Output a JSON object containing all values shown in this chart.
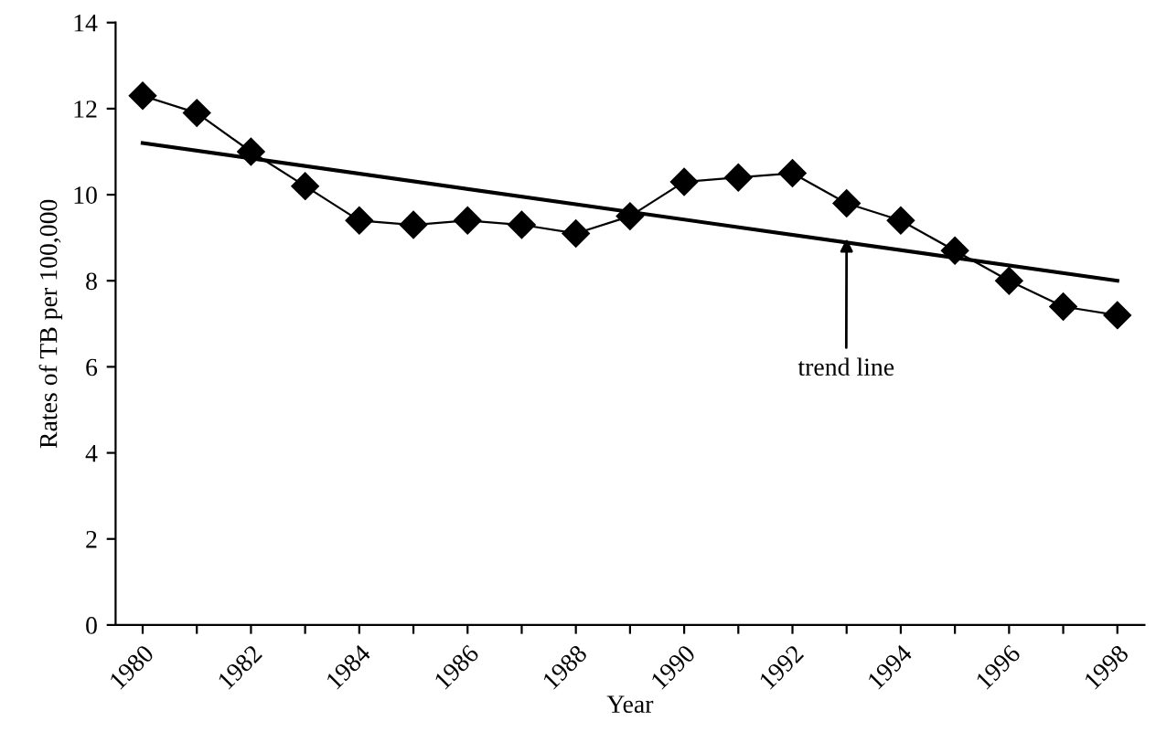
{
  "chart_data": {
    "type": "line",
    "xlabel": "Year",
    "ylabel": "Rates of TB per 100,000",
    "xlim": [
      1979.5,
      1998.5
    ],
    "xticks": [
      1980,
      {
        "value": 1981,
        "label": null
      },
      1982,
      {
        "value": 1983,
        "label": null
      },
      1984,
      {
        "value": 1985,
        "label": null
      },
      1986,
      {
        "value": 1987,
        "label": null
      },
      1988,
      {
        "value": 1989,
        "label": null
      },
      1990,
      {
        "value": 1991,
        "label": null
      },
      1992,
      {
        "value": 1993,
        "label": null
      },
      1994,
      {
        "value": 1995,
        "label": null
      },
      1996,
      {
        "value": 1997,
        "label": null
      },
      1998
    ],
    "ylim": [
      0,
      14
    ],
    "yticks": [
      0,
      2,
      4,
      6,
      8,
      10,
      12,
      14
    ],
    "grid": false,
    "legend": false,
    "series": [
      {
        "color": "#000000",
        "marker": "diamond",
        "x": [
          1980,
          1981,
          1982,
          1983,
          1984,
          1985,
          1986,
          1987,
          1988,
          1989,
          1990,
          1991,
          1992,
          1993,
          1994,
          1995,
          1996,
          1997,
          1998
        ],
        "values": [
          12.3,
          11.9,
          11.0,
          10.2,
          9.4,
          9.3,
          9.4,
          9.3,
          9.1,
          9.5,
          10.3,
          10.4,
          10.5,
          9.8,
          9.4,
          8.7,
          8.0,
          7.4,
          7.2
        ]
      },
      {
        "type": "line",
        "color": "#000000",
        "marker": "none",
        "x": [
          1980,
          1998
        ],
        "values": [
          11.2,
          8.0
        ]
      }
    ],
    "annotations": [
      {
        "text": "trend line",
        "x": 1993,
        "y": 9.1
      }
    ]
  }
}
